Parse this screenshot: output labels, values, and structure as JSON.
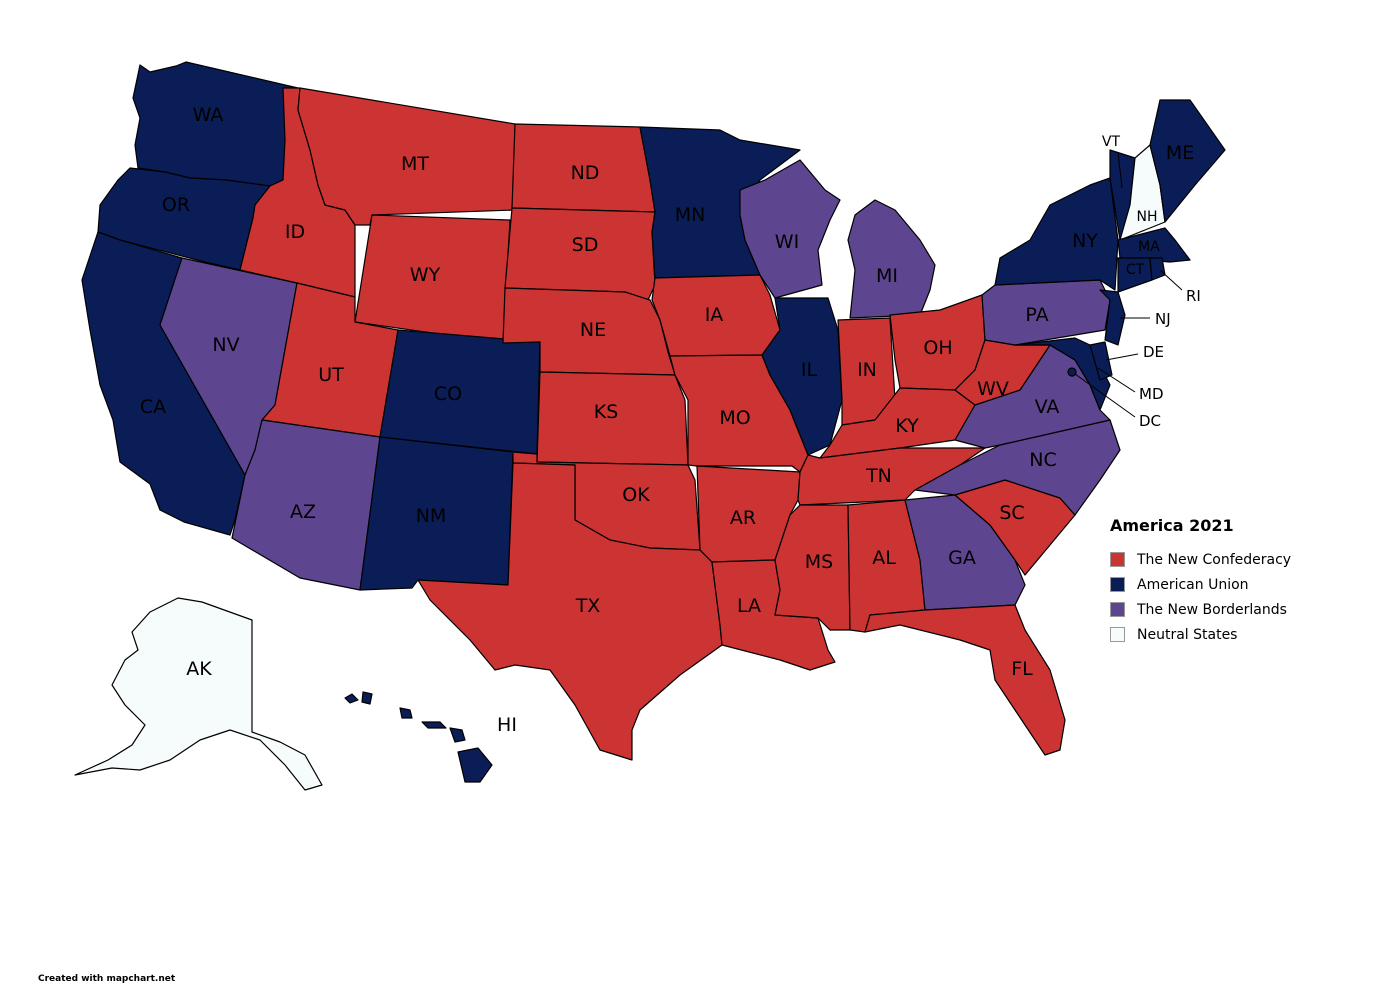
{
  "legend": {
    "title": "America 2021",
    "items": [
      {
        "key": "confederacy",
        "label": "The New Confederacy",
        "color": "#CC3333"
      },
      {
        "key": "union",
        "label": "American Union",
        "color": "#0B1D56"
      },
      {
        "key": "borderlands",
        "label": "The New Borderlands",
        "color": "#5E4590"
      },
      {
        "key": "neutral",
        "label": "Neutral States",
        "color": "#F5FCFB"
      }
    ]
  },
  "states": [
    {
      "id": "WA",
      "label": "WA",
      "group": "union"
    },
    {
      "id": "OR",
      "label": "OR",
      "group": "union"
    },
    {
      "id": "CA",
      "label": "CA",
      "group": "union"
    },
    {
      "id": "NV",
      "label": "NV",
      "group": "borderlands"
    },
    {
      "id": "ID",
      "label": "ID",
      "group": "confederacy"
    },
    {
      "id": "MT",
      "label": "MT",
      "group": "confederacy"
    },
    {
      "id": "WY",
      "label": "WY",
      "group": "confederacy"
    },
    {
      "id": "UT",
      "label": "UT",
      "group": "confederacy"
    },
    {
      "id": "CO",
      "label": "CO",
      "group": "union"
    },
    {
      "id": "AZ",
      "label": "AZ",
      "group": "borderlands"
    },
    {
      "id": "NM",
      "label": "NM",
      "group": "union"
    },
    {
      "id": "ND",
      "label": "ND",
      "group": "confederacy"
    },
    {
      "id": "SD",
      "label": "SD",
      "group": "confederacy"
    },
    {
      "id": "NE",
      "label": "NE",
      "group": "confederacy"
    },
    {
      "id": "KS",
      "label": "KS",
      "group": "confederacy"
    },
    {
      "id": "OK",
      "label": "OK",
      "group": "confederacy"
    },
    {
      "id": "TX",
      "label": "TX",
      "group": "confederacy"
    },
    {
      "id": "MN",
      "label": "MN",
      "group": "union"
    },
    {
      "id": "IA",
      "label": "IA",
      "group": "confederacy"
    },
    {
      "id": "MO",
      "label": "MO",
      "group": "confederacy"
    },
    {
      "id": "AR",
      "label": "AR",
      "group": "confederacy"
    },
    {
      "id": "LA",
      "label": "LA",
      "group": "confederacy"
    },
    {
      "id": "WI",
      "label": "WI",
      "group": "borderlands"
    },
    {
      "id": "IL",
      "label": "IL",
      "group": "union"
    },
    {
      "id": "MI",
      "label": "MI",
      "group": "borderlands"
    },
    {
      "id": "IN",
      "label": "IN",
      "group": "confederacy"
    },
    {
      "id": "OH",
      "label": "OH",
      "group": "confederacy"
    },
    {
      "id": "KY",
      "label": "KY",
      "group": "confederacy"
    },
    {
      "id": "TN",
      "label": "TN",
      "group": "confederacy"
    },
    {
      "id": "MS",
      "label": "MS",
      "group": "confederacy"
    },
    {
      "id": "AL",
      "label": "AL",
      "group": "confederacy"
    },
    {
      "id": "GA",
      "label": "GA",
      "group": "borderlands"
    },
    {
      "id": "FL",
      "label": "FL",
      "group": "confederacy"
    },
    {
      "id": "SC",
      "label": "SC",
      "group": "confederacy"
    },
    {
      "id": "NC",
      "label": "NC",
      "group": "borderlands"
    },
    {
      "id": "VA",
      "label": "VA",
      "group": "borderlands"
    },
    {
      "id": "WV",
      "label": "WV",
      "group": "confederacy"
    },
    {
      "id": "PA",
      "label": "PA",
      "group": "borderlands"
    },
    {
      "id": "NY",
      "label": "NY",
      "group": "union"
    },
    {
      "id": "VT",
      "label": "VT",
      "group": "union"
    },
    {
      "id": "NH",
      "label": "NH",
      "group": "neutral"
    },
    {
      "id": "ME",
      "label": "ME",
      "group": "union"
    },
    {
      "id": "MA",
      "label": "MA",
      "group": "union"
    },
    {
      "id": "CT",
      "label": "CT",
      "group": "union"
    },
    {
      "id": "RI",
      "label": "RI",
      "group": "union"
    },
    {
      "id": "NJ",
      "label": "NJ",
      "group": "union"
    },
    {
      "id": "DE",
      "label": "DE",
      "group": "union"
    },
    {
      "id": "MD",
      "label": "MD",
      "group": "union"
    },
    {
      "id": "DC",
      "label": "DC",
      "group": "union"
    },
    {
      "id": "AK",
      "label": "AK",
      "group": "neutral"
    },
    {
      "id": "HI",
      "label": "HI",
      "group": "union"
    }
  ],
  "credit": "Created with mapchart.net"
}
